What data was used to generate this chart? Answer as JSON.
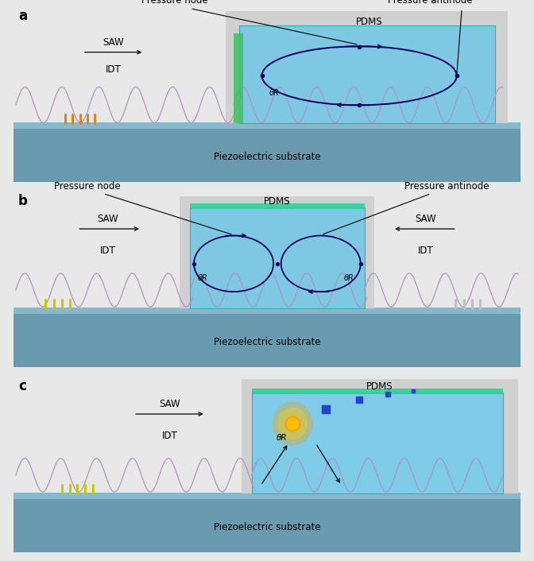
{
  "bg_color": "#e8e8e8",
  "substrate_color": "#6a9ab0",
  "substrate_top_color": "#88b8cc",
  "pdms_gray": "#c8c8c8",
  "pdms_blue_a": "#7ec8e3",
  "pdms_blue_b": "#7ec8e3",
  "pdms_blue_c": "#7ecce8",
  "pdms_border": "#30b0b0",
  "wave_color": "#b090c0",
  "idt_orange": "#e08020",
  "idt_yellow": "#c8c800",
  "ellipse_color": "#000060",
  "particle_gold": "#ffc000",
  "particle_glow": "#ff9900",
  "blue_dot": "#2244cc",
  "arrow_color": "#000000",
  "text_color": "#000000",
  "green_strip": "#20c080",
  "pink_strip": "#e090a0",
  "label_pressure_node": "Pressure node",
  "label_pressure_antinode": "Pressure antinode",
  "label_pdms": "PDMS",
  "label_saw": "SAW",
  "label_idt": "IDT",
  "label_piezo": "Piezoelectric substrate",
  "label_theta": "θR",
  "title_a": "a",
  "title_b": "b",
  "title_c": "c",
  "font_label": 8.5,
  "font_title": 12
}
